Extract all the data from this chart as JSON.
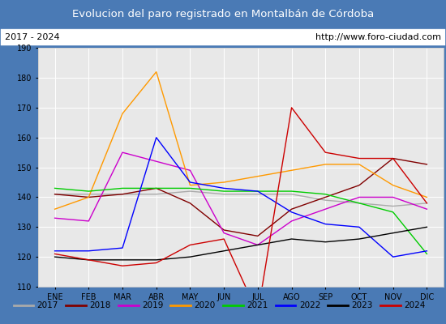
{
  "title": "Evolucion del paro registrado en Montalbán de Córdoba",
  "subtitle_left": "2017 - 2024",
  "subtitle_right": "http://www.foro-ciudad.com",
  "months": [
    "ENE",
    "FEB",
    "MAR",
    "ABR",
    "MAY",
    "JUN",
    "JUL",
    "AGO",
    "SEP",
    "OCT",
    "NOV",
    "DIC"
  ],
  "ylim": [
    110,
    190
  ],
  "yticks": [
    110,
    120,
    130,
    140,
    150,
    160,
    170,
    180,
    190
  ],
  "series": {
    "2017": {
      "color": "#aaaaaa",
      "data": [
        141,
        141,
        141,
        141,
        142,
        141,
        141,
        141,
        139,
        138,
        137,
        138
      ]
    },
    "2018": {
      "color": "#800000",
      "data": [
        141,
        140,
        141,
        143,
        138,
        129,
        127,
        136,
        140,
        144,
        153,
        151
      ]
    },
    "2019": {
      "color": "#cc00cc",
      "data": [
        133,
        132,
        155,
        152,
        149,
        128,
        124,
        132,
        136,
        140,
        140,
        136
      ]
    },
    "2020": {
      "color": "#ff9900",
      "data": [
        136,
        140,
        168,
        182,
        144,
        145,
        147,
        149,
        151,
        151,
        144,
        140
      ]
    },
    "2021": {
      "color": "#00cc00",
      "data": [
        143,
        142,
        143,
        143,
        143,
        142,
        142,
        142,
        141,
        138,
        135,
        121
      ]
    },
    "2022": {
      "color": "#0000ff",
      "data": [
        122,
        122,
        123,
        160,
        145,
        143,
        142,
        135,
        131,
        130,
        120,
        122
      ]
    },
    "2023": {
      "color": "#000000",
      "data": [
        120,
        119,
        119,
        119,
        120,
        122,
        124,
        126,
        125,
        126,
        128,
        130
      ]
    },
    "2024": {
      "color": "#cc0000",
      "data": [
        121,
        119,
        117,
        118,
        124,
        126,
        101,
        170,
        155,
        153,
        153,
        138
      ]
    }
  },
  "title_bg_color": "#4a7ab5",
  "title_font_color": "#ffffff",
  "plot_bg_color": "#e8e8e8",
  "border_color": "#4a7ab5",
  "fig_width": 5.5,
  "fig_height": 4.0,
  "dpi": 100
}
